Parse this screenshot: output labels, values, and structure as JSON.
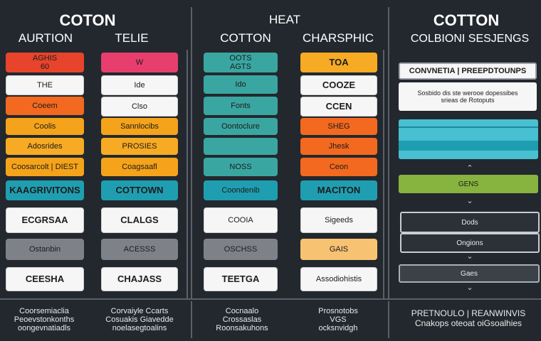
{
  "headers": {
    "top_left": "COTON",
    "auction": "AURTION",
    "telie": "TELIE",
    "heat": "HEAT",
    "cotton_mid": "COTTON",
    "charsphic": "CHARSPHIC",
    "cotton_right": "COTTON",
    "right_subtitle": "COLBIONI SESJENGS"
  },
  "col1": [
    "AGHIS\n60",
    "THE",
    "Coeem",
    "Coolis",
    "Adosrides",
    "Coosarcolt | DIEST",
    "KAAGRIVITONS",
    "ECGRSAA",
    "Ostanbin",
    "CEESHA"
  ],
  "col2": [
    "W",
    "Ide",
    "Clso",
    "Sannlocibs",
    "PROSIES",
    "Coagsaafl",
    "COTTOWN",
    "CLALGS",
    "ACESSS",
    "CHAJASS"
  ],
  "col3": [
    "OOTS\nAGTS",
    "Ido",
    "Fonts",
    "Oontoclure",
    "",
    "NOSS",
    "Coondenib",
    "COOIA",
    "OSCHSS",
    "TEETGA"
  ],
  "col4": [
    "TOA",
    "COOZE",
    "CCEN",
    "SHEG",
    "Jhesk",
    "Ceon",
    "MACITON",
    "Sigeeds",
    "GAIS",
    "Assodiohistis"
  ],
  "right": {
    "box1": "CONVNETIA | PREEPDTOUNPS",
    "box2": "Sosbido dis ste werooe dopessibes\nsrieas de Rotoputs",
    "box3": "",
    "box4": "GENS",
    "box5": "Dods",
    "box6": "Ongions",
    "box7": "Gaes"
  },
  "footer": {
    "f1": "Coorsemiaclia\nPeoevstonkonths\noongevnatiadls",
    "f2": "Corvaiyle Ccarts\nCosuakis Giavedde\nnoelasegtoalins",
    "f3": "Cocnaalo\nCrossaslas\nRoonsakuhons",
    "f4": "Prosnotobs\nVGS\nocksnvidgh",
    "f5": "PRETNOULO | REANWINVIS\nCnakops oteoat oiGsoalhies"
  },
  "colors": {
    "background": "#23282e",
    "red": "#e8442b",
    "orange": "#f3691f",
    "amber": "#f5a31a",
    "pink": "#e73e6e",
    "teal": "#3aa6a1",
    "cyan": "#1f9eb1",
    "light_cyan": "#49bfd2",
    "gray": "#7e8288",
    "peach": "#f7c272",
    "yellow_orange": "#f7aa23",
    "green": "#87b33f"
  }
}
